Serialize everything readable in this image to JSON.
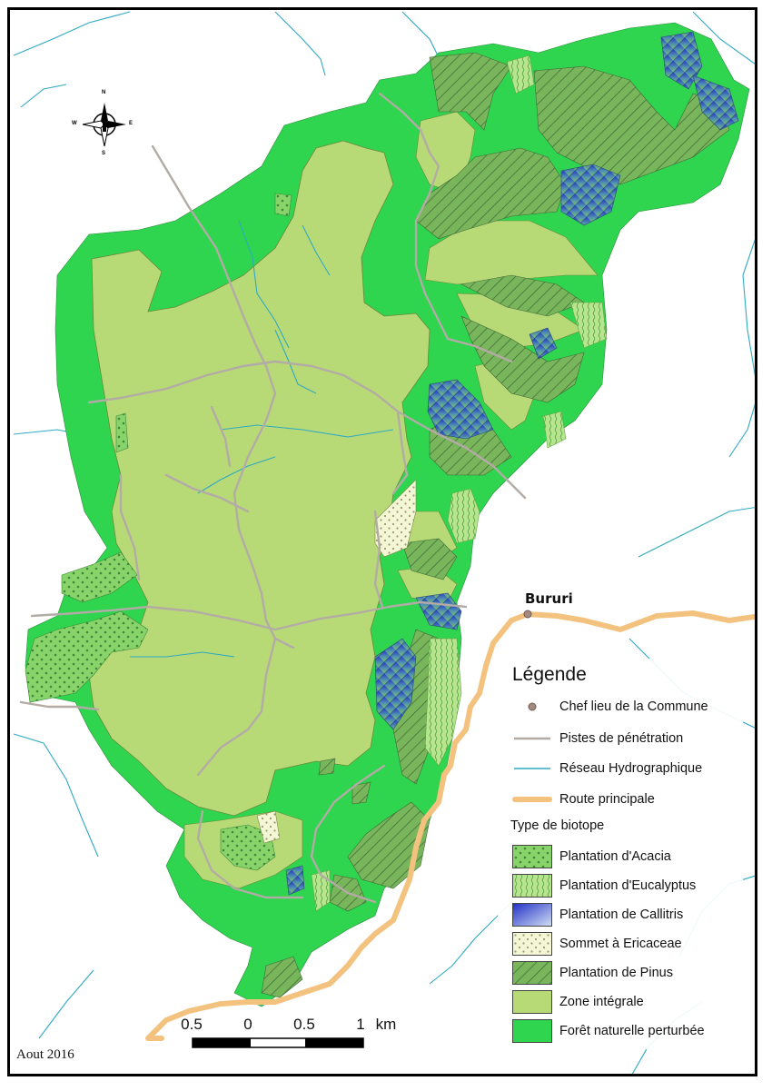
{
  "date": "Aout 2016",
  "town": "Bururi",
  "compass": {
    "n": "N",
    "s": "S",
    "e": "E",
    "w": "W"
  },
  "scale": {
    "labels": [
      "0.5",
      "0",
      "0.5",
      "1",
      "km"
    ]
  },
  "legend": {
    "title": "Légende",
    "lines": [
      {
        "key": "chef",
        "label": "Chef lieu de la Commune"
      },
      {
        "key": "pistes",
        "label": "Pistes de pénétration"
      },
      {
        "key": "reseau",
        "label": "Réseau Hydrographique"
      },
      {
        "key": "route",
        "label": "Route principale"
      }
    ],
    "biotope_title": "Type de biotope",
    "biotopes": [
      {
        "key": "acacia",
        "label": "Plantation d'Acacia"
      },
      {
        "key": "eucalyptus",
        "label": "Plantation d'Eucalyptus"
      },
      {
        "key": "callitris",
        "label": "Plantation de Callitris"
      },
      {
        "key": "ericaceae",
        "label": "Sommet à Ericaceae"
      },
      {
        "key": "pinus",
        "label": "Plantation de Pinus"
      },
      {
        "key": "integrale",
        "label": "Zone intégrale"
      },
      {
        "key": "foret",
        "label": "Forêt naturelle perturbée"
      }
    ]
  },
  "colors": {
    "zone_integrale": "#b8da76",
    "foret": "#2fd44f",
    "river": "#2fa9c2",
    "track": "#b3aba5",
    "road": "#f3c27e",
    "town": "#a58a80"
  }
}
